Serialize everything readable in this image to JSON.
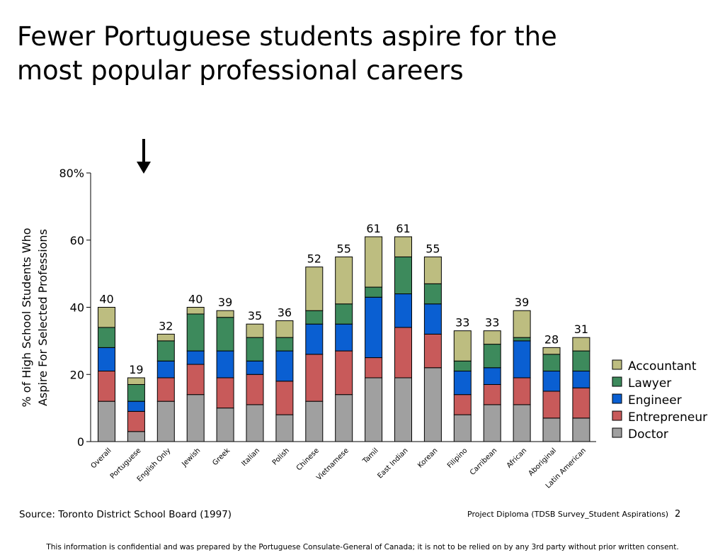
{
  "slide": {
    "title_line1": "Fewer Portuguese students aspire for the",
    "title_line2": "most popular professional careers",
    "source": "Source: Toronto District School Board (1997)",
    "project": "Project Diploma (TDSB Survey_Student Aspirations)",
    "page_number": "2",
    "disclaimer": "This information is confidential and was prepared by the Portuguese Consulate-General of Canada; it is not to be relied on by any 3rd party without prior written consent."
  },
  "chart_data": {
    "type": "bar",
    "stacked": true,
    "title": "",
    "ylabel_line1": "% of High School Students Who",
    "ylabel_line2": "Aspire For Selected Professions",
    "xlabel": "",
    "ylim": [
      0,
      80
    ],
    "yticks": [
      0,
      20,
      40,
      60,
      80
    ],
    "ytick_labels": [
      "0",
      "20",
      "40",
      "60",
      "80%"
    ],
    "categories": [
      "Overall",
      "Portuguese",
      "English Only",
      "Jewish",
      "Greek",
      "Italian",
      "Polish",
      "Chinese",
      "Vietnamese",
      "Tamil",
      "East Indian",
      "Korean",
      "Filipino",
      "Carribean",
      "African",
      "Aboriginal",
      "Latin American"
    ],
    "totals": [
      40,
      19,
      32,
      40,
      39,
      35,
      36,
      52,
      55,
      61,
      61,
      55,
      33,
      33,
      39,
      28,
      31
    ],
    "highlight_category": "Portuguese",
    "legend_position": "right",
    "series": [
      {
        "name": "Doctor",
        "color": "#a0a0a0",
        "values": [
          12,
          3,
          12,
          14,
          10,
          11,
          8,
          12,
          14,
          19,
          19,
          22,
          8,
          11,
          11,
          7,
          7
        ]
      },
      {
        "name": "Entrepreneur",
        "color": "#c85a5a",
        "values": [
          9,
          6,
          7,
          9,
          9,
          9,
          10,
          14,
          13,
          6,
          15,
          10,
          6,
          6,
          8,
          8,
          9
        ]
      },
      {
        "name": "Engineer",
        "color": "#0a5fd2",
        "values": [
          7,
          3,
          5,
          4,
          8,
          4,
          9,
          9,
          8,
          18,
          10,
          9,
          7,
          5,
          11,
          6,
          5
        ]
      },
      {
        "name": "Lawyer",
        "color": "#3d8a5c",
        "values": [
          6,
          5,
          6,
          11,
          10,
          7,
          4,
          4,
          6,
          3,
          11,
          6,
          3,
          7,
          1,
          5,
          6
        ]
      },
      {
        "name": "Accountant",
        "color": "#bdbd80",
        "values": [
          6,
          2,
          2,
          2,
          2,
          4,
          5,
          13,
          14,
          15,
          6,
          8,
          9,
          4,
          8,
          2,
          4
        ]
      }
    ]
  }
}
